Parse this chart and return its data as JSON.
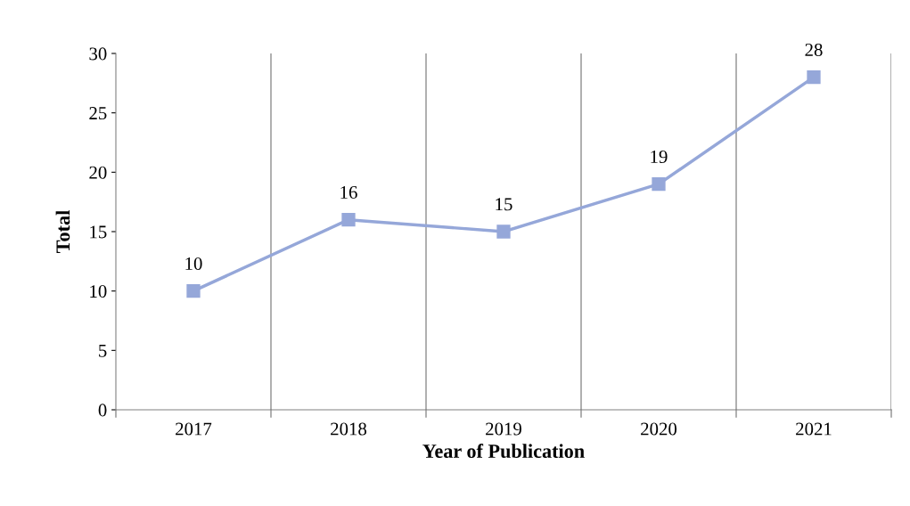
{
  "chart_data": {
    "type": "line",
    "xlabel": "Year of Publication",
    "ylabel": "Total",
    "categories": [
      "2017",
      "2018",
      "2019",
      "2020",
      "2021"
    ],
    "series": [
      {
        "color": "#95a7d9",
        "values": [
          10,
          16,
          15,
          19,
          28
        ]
      }
    ],
    "ylim": [
      0,
      30
    ],
    "yticks": [
      0,
      5,
      10,
      15,
      20,
      25,
      30
    ],
    "grid": "x",
    "marker": "square",
    "line_style": "solid",
    "data_labels": true,
    "legend": false
  }
}
